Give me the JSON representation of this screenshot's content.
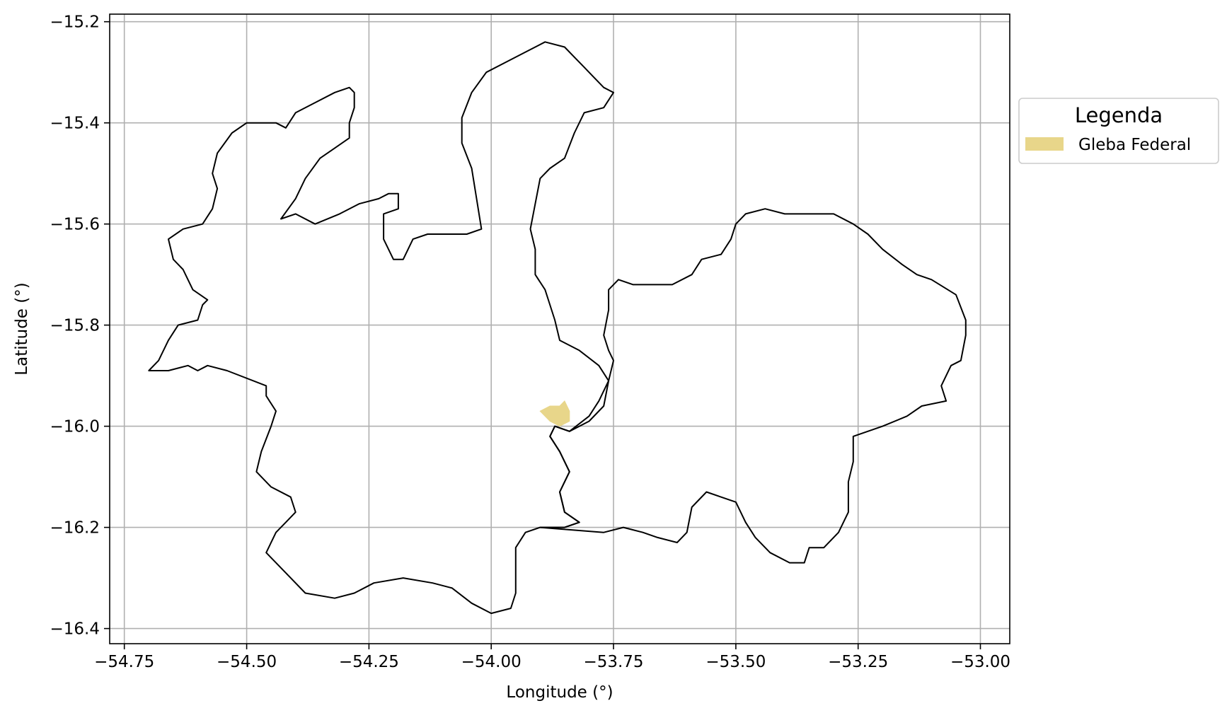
{
  "chart_data": {
    "type": "map",
    "xlabel": "Longitude (°)",
    "ylabel": "Latitude (°)",
    "xlim": [
      -54.78,
      -52.94
    ],
    "ylim": [
      -16.43,
      -15.185
    ],
    "x_ticks": [
      -54.75,
      -54.5,
      -54.25,
      -54.0,
      -53.75,
      -53.5,
      -53.25,
      -53.0
    ],
    "x_tick_labels": [
      "−54.75",
      "−54.50",
      "−54.25",
      "−54.00",
      "−53.75",
      "−53.50",
      "−53.25",
      "−53.00"
    ],
    "y_ticks": [
      -15.2,
      -15.4,
      -15.6,
      -15.8,
      -16.0,
      -16.2,
      -16.4
    ],
    "y_tick_labels": [
      "−15.2",
      "−15.4",
      "−15.6",
      "−15.8",
      "−16.0",
      "−16.2",
      "−16.4"
    ],
    "grid": true,
    "legend": {
      "title": "Legenda",
      "placement": "outside-right",
      "entries": [
        {
          "label": "Gleba Federal",
          "color": "#e8d68a"
        }
      ]
    },
    "boundaries": [
      {
        "name": "",
        "stroke": "#000000",
        "coords": [
          [
            -54.7,
            -15.89
          ],
          [
            -54.68,
            -15.87
          ],
          [
            -54.66,
            -15.83
          ],
          [
            -54.64,
            -15.8
          ],
          [
            -54.6,
            -15.79
          ],
          [
            -54.59,
            -15.76
          ],
          [
            -54.58,
            -15.75
          ],
          [
            -54.61,
            -15.73
          ],
          [
            -54.62,
            -15.71
          ],
          [
            -54.63,
            -15.69
          ],
          [
            -54.65,
            -15.67
          ],
          [
            -54.66,
            -15.63
          ],
          [
            -54.63,
            -15.61
          ],
          [
            -54.59,
            -15.6
          ],
          [
            -54.57,
            -15.57
          ],
          [
            -54.56,
            -15.53
          ],
          [
            -54.57,
            -15.5
          ],
          [
            -54.56,
            -15.46
          ],
          [
            -54.53,
            -15.42
          ],
          [
            -54.5,
            -15.4
          ],
          [
            -54.47,
            -15.4
          ],
          [
            -54.44,
            -15.4
          ],
          [
            -54.42,
            -15.41
          ],
          [
            -54.4,
            -15.38
          ],
          [
            -54.36,
            -15.36
          ],
          [
            -54.32,
            -15.34
          ],
          [
            -54.29,
            -15.33
          ],
          [
            -54.28,
            -15.34
          ],
          [
            -54.28,
            -15.37
          ],
          [
            -54.29,
            -15.4
          ],
          [
            -54.29,
            -15.43
          ],
          [
            -54.32,
            -15.45
          ],
          [
            -54.35,
            -15.47
          ],
          [
            -54.38,
            -15.51
          ],
          [
            -54.4,
            -15.55
          ],
          [
            -54.43,
            -15.59
          ],
          [
            -54.4,
            -15.58
          ],
          [
            -54.36,
            -15.6
          ],
          [
            -54.31,
            -15.58
          ],
          [
            -54.27,
            -15.56
          ],
          [
            -54.23,
            -15.55
          ],
          [
            -54.21,
            -15.54
          ],
          [
            -54.19,
            -15.54
          ],
          [
            -54.19,
            -15.57
          ],
          [
            -54.22,
            -15.58
          ],
          [
            -54.22,
            -15.63
          ],
          [
            -54.2,
            -15.67
          ],
          [
            -54.18,
            -15.67
          ],
          [
            -54.16,
            -15.63
          ],
          [
            -54.13,
            -15.62
          ],
          [
            -54.05,
            -15.62
          ],
          [
            -54.02,
            -15.61
          ],
          [
            -54.03,
            -15.55
          ],
          [
            -54.04,
            -15.49
          ],
          [
            -54.06,
            -15.44
          ],
          [
            -54.06,
            -15.39
          ],
          [
            -54.04,
            -15.34
          ],
          [
            -54.01,
            -15.3
          ],
          [
            -53.97,
            -15.28
          ],
          [
            -53.93,
            -15.26
          ],
          [
            -53.89,
            -15.24
          ],
          [
            -53.85,
            -15.25
          ],
          [
            -53.83,
            -15.27
          ],
          [
            -53.81,
            -15.29
          ],
          [
            -53.79,
            -15.31
          ],
          [
            -53.77,
            -15.33
          ],
          [
            -53.75,
            -15.34
          ],
          [
            -53.77,
            -15.37
          ],
          [
            -53.81,
            -15.38
          ],
          [
            -53.83,
            -15.42
          ],
          [
            -53.85,
            -15.47
          ],
          [
            -53.88,
            -15.49
          ],
          [
            -53.9,
            -15.51
          ],
          [
            -53.91,
            -15.56
          ],
          [
            -53.92,
            -15.61
          ],
          [
            -53.91,
            -15.65
          ],
          [
            -53.91,
            -15.7
          ],
          [
            -53.89,
            -15.73
          ],
          [
            -53.88,
            -15.76
          ],
          [
            -53.87,
            -15.79
          ],
          [
            -53.86,
            -15.83
          ],
          [
            -53.82,
            -15.85
          ],
          [
            -53.78,
            -15.88
          ],
          [
            -53.76,
            -15.91
          ],
          [
            -53.77,
            -15.96
          ],
          [
            -53.8,
            -15.99
          ],
          [
            -53.84,
            -16.01
          ],
          [
            -53.87,
            -16.0
          ],
          [
            -53.88,
            -16.02
          ],
          [
            -53.86,
            -16.05
          ],
          [
            -53.84,
            -16.09
          ],
          [
            -53.86,
            -16.13
          ],
          [
            -53.85,
            -16.17
          ],
          [
            -53.82,
            -16.19
          ],
          [
            -53.85,
            -16.2
          ],
          [
            -53.9,
            -16.2
          ],
          [
            -53.93,
            -16.21
          ],
          [
            -53.95,
            -16.24
          ],
          [
            -53.95,
            -16.29
          ],
          [
            -53.95,
            -16.33
          ],
          [
            -53.96,
            -16.36
          ],
          [
            -54.0,
            -16.37
          ],
          [
            -54.04,
            -16.35
          ],
          [
            -54.08,
            -16.32
          ],
          [
            -54.12,
            -16.31
          ],
          [
            -54.18,
            -16.3
          ],
          [
            -54.24,
            -16.31
          ],
          [
            -54.28,
            -16.33
          ],
          [
            -54.32,
            -16.34
          ],
          [
            -54.38,
            -16.33
          ],
          [
            -54.41,
            -16.3
          ],
          [
            -54.44,
            -16.27
          ],
          [
            -54.46,
            -16.25
          ],
          [
            -54.44,
            -16.21
          ],
          [
            -54.42,
            -16.19
          ],
          [
            -54.4,
            -16.17
          ],
          [
            -54.41,
            -16.14
          ],
          [
            -54.45,
            -16.12
          ],
          [
            -54.48,
            -16.09
          ],
          [
            -54.47,
            -16.05
          ],
          [
            -54.45,
            -16.0
          ],
          [
            -54.44,
            -15.97
          ],
          [
            -54.46,
            -15.94
          ],
          [
            -54.46,
            -15.92
          ],
          [
            -54.54,
            -15.89
          ],
          [
            -54.58,
            -15.88
          ],
          [
            -54.6,
            -15.89
          ],
          [
            -54.62,
            -15.88
          ],
          [
            -54.66,
            -15.89
          ],
          [
            -54.7,
            -15.89
          ]
        ]
      },
      {
        "name": "",
        "stroke": "#000000",
        "coords": [
          [
            -53.77,
            -16.21
          ],
          [
            -53.73,
            -16.2
          ],
          [
            -53.69,
            -16.21
          ],
          [
            -53.66,
            -16.22
          ],
          [
            -53.62,
            -16.23
          ],
          [
            -53.6,
            -16.21
          ],
          [
            -53.59,
            -16.16
          ],
          [
            -53.56,
            -16.13
          ],
          [
            -53.53,
            -16.14
          ],
          [
            -53.5,
            -16.15
          ],
          [
            -53.48,
            -16.19
          ],
          [
            -53.46,
            -16.22
          ],
          [
            -53.43,
            -16.25
          ],
          [
            -53.39,
            -16.27
          ],
          [
            -53.36,
            -16.27
          ],
          [
            -53.35,
            -16.24
          ],
          [
            -53.32,
            -16.24
          ],
          [
            -53.29,
            -16.21
          ],
          [
            -53.27,
            -16.17
          ],
          [
            -53.27,
            -16.11
          ],
          [
            -53.26,
            -16.07
          ],
          [
            -53.26,
            -16.02
          ],
          [
            -53.2,
            -16.0
          ],
          [
            -53.15,
            -15.98
          ],
          [
            -53.12,
            -15.96
          ],
          [
            -53.07,
            -15.95
          ],
          [
            -53.08,
            -15.92
          ],
          [
            -53.06,
            -15.88
          ],
          [
            -53.04,
            -15.87
          ],
          [
            -53.03,
            -15.82
          ],
          [
            -53.03,
            -15.79
          ],
          [
            -53.05,
            -15.74
          ],
          [
            -53.1,
            -15.71
          ],
          [
            -53.13,
            -15.7
          ],
          [
            -53.16,
            -15.68
          ],
          [
            -53.2,
            -15.65
          ],
          [
            -53.23,
            -15.62
          ],
          [
            -53.26,
            -15.6
          ],
          [
            -53.3,
            -15.58
          ],
          [
            -53.35,
            -15.58
          ],
          [
            -53.4,
            -15.58
          ],
          [
            -53.44,
            -15.57
          ],
          [
            -53.48,
            -15.58
          ],
          [
            -53.5,
            -15.6
          ],
          [
            -53.51,
            -15.63
          ],
          [
            -53.53,
            -15.66
          ],
          [
            -53.57,
            -15.67
          ],
          [
            -53.59,
            -15.7
          ],
          [
            -53.63,
            -15.72
          ],
          [
            -53.67,
            -15.72
          ],
          [
            -53.71,
            -15.72
          ],
          [
            -53.74,
            -15.71
          ],
          [
            -53.76,
            -15.73
          ],
          [
            -53.76,
            -15.77
          ],
          [
            -53.77,
            -15.82
          ],
          [
            -53.76,
            -15.85
          ],
          [
            -53.75,
            -15.87
          ],
          [
            -53.76,
            -15.91
          ],
          [
            -53.78,
            -15.95
          ],
          [
            -53.8,
            -15.98
          ],
          [
            -53.84,
            -16.01
          ],
          [
            -53.87,
            -16.0
          ],
          [
            -53.88,
            -16.02
          ],
          [
            -53.86,
            -16.05
          ],
          [
            -53.84,
            -16.09
          ],
          [
            -53.86,
            -16.13
          ],
          [
            -53.85,
            -16.17
          ],
          [
            -53.82,
            -16.19
          ],
          [
            -53.85,
            -16.2
          ],
          [
            -53.9,
            -16.2
          ],
          [
            -53.77,
            -16.21
          ]
        ]
      }
    ],
    "areas": [
      {
        "series": "Gleba Federal",
        "color": "#e8d68a",
        "coords": [
          [
            -53.9,
            -15.97
          ],
          [
            -53.88,
            -15.96
          ],
          [
            -53.86,
            -15.96
          ],
          [
            -53.85,
            -15.95
          ],
          [
            -53.84,
            -15.97
          ],
          [
            -53.84,
            -15.99
          ],
          [
            -53.86,
            -16.0
          ],
          [
            -53.88,
            -15.99
          ],
          [
            -53.9,
            -15.97
          ]
        ]
      }
    ]
  }
}
